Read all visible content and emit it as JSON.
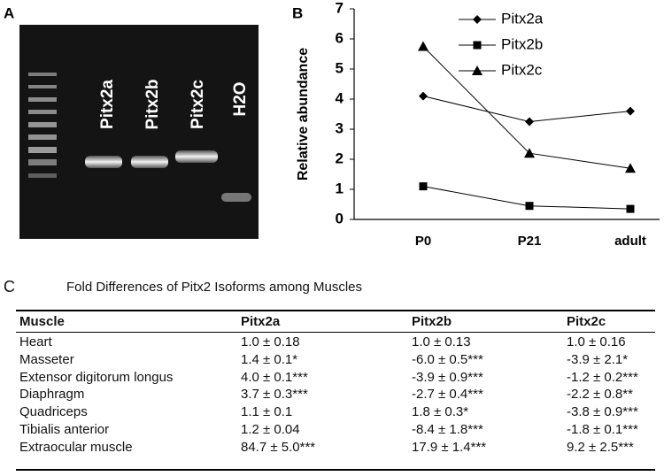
{
  "panel_a": {
    "label": "A",
    "lanes": [
      "Pitx2a",
      "Pitx2b",
      "Pitx2c",
      "H2O"
    ]
  },
  "chart_data": {
    "type": "line",
    "panel_label": "B",
    "y_label": "Relative abundance",
    "categories": [
      "P0",
      "P21",
      "adult"
    ],
    "series": [
      {
        "name": "Pitx2a",
        "color": "#000000",
        "marker": "diamond",
        "values": [
          4.1,
          3.25,
          3.6
        ]
      },
      {
        "name": "Pitx2b",
        "color": "#000000",
        "marker": "square",
        "values": [
          1.1,
          0.45,
          0.35
        ]
      },
      {
        "name": "Pitx2c",
        "color": "#000000",
        "marker": "triangle",
        "values": [
          5.75,
          2.2,
          1.7
        ]
      }
    ],
    "ylim": [
      0,
      7
    ],
    "yticks": [
      0,
      1,
      2,
      3,
      4,
      5,
      6,
      7
    ],
    "grid": false,
    "legend": "upper right"
  },
  "table": {
    "label": "C",
    "title": "Fold Differences of Pitx2 Isoforms among Muscles",
    "header": [
      "Muscle",
      "Pitx2a",
      "Pitx2b",
      "Pitx2c"
    ],
    "rows": [
      [
        "Heart",
        "1.0 ± 0.18",
        "1.0 ± 0.13",
        "1.0 ± 0.16"
      ],
      [
        "Masseter",
        "1.4 ± 0.1*",
        "-6.0 ± 0.5***",
        "-3.9 ± 2.1*"
      ],
      [
        "Extensor digitorum longus",
        "4.0 ± 0.1***",
        "-3.9 ± 0.9***",
        "-1.2 ± 0.2***"
      ],
      [
        "Diaphragm",
        "3.7 ± 0.3***",
        "-2.7 ± 0.4***",
        "-2.2 ± 0.8**"
      ],
      [
        "Quadriceps",
        "1.1 ± 0.1",
        "1.8 ± 0.3*",
        "-3.8 ± 0.9***"
      ],
      [
        "Tibialis anterior",
        "1.2 ± 0.04",
        "-8.4 ± 1.8***",
        "-1.8 ± 0.1***"
      ],
      [
        "Extraocular muscle",
        "84.7 ± 5.0***",
        "17.9 ± 1.4***",
        "9.2 ± 2.5***"
      ]
    ]
  }
}
